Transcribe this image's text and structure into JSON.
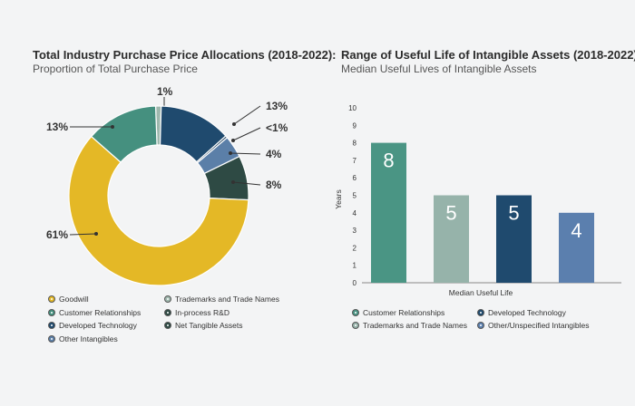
{
  "chart_data": [
    {
      "type": "pie",
      "title": "Total Industry Purchase Price Allocations (2018-2022):",
      "subtitle": "Proportion of Total Purchase Price",
      "slices": [
        {
          "name": "Trademarks and Trade Names",
          "value": 1,
          "label": "1%",
          "color": "#9fb8ae"
        },
        {
          "name": "Developed Technology",
          "value": 13,
          "label": "13%",
          "color": "#1f4a6e"
        },
        {
          "name": "Other Intangibles",
          "value": 0.4,
          "label": "<1%",
          "color": "#2b4b66"
        },
        {
          "name": "In-process R&D",
          "value": 4,
          "label": "4%",
          "color": "#5b7fa8"
        },
        {
          "name": "Net Tangible Assets",
          "value": 8,
          "label": "8%",
          "color": "#2e4a44"
        },
        {
          "name": "Goodwill",
          "value": 61,
          "label": "61%",
          "color": "#e4b826"
        },
        {
          "name": "Customer Relationships",
          "value": 13,
          "label": "13%",
          "color": "#45907f"
        }
      ],
      "legend": [
        {
          "label": "Goodwill",
          "color": "#e4b826"
        },
        {
          "label": "Trademarks and Trade Names",
          "color": "#9fb8ae"
        },
        {
          "label": "Customer Relationships",
          "color": "#45907f"
        },
        {
          "label": "In-process R&D",
          "color": "#2e4a44"
        },
        {
          "label": "Developed Technology",
          "color": "#1f4a6e"
        },
        {
          "label": "Net Tangible Assets",
          "color": "#2e4a44"
        },
        {
          "label": "Other Intangibles",
          "color": "#5b7fa8"
        }
      ]
    },
    {
      "type": "bar",
      "title": "Range of Useful Life of Intangible Assets (2018-2022):",
      "subtitle": "Median Useful Lives of Intangible Assets",
      "categories": [
        "Customer Relationships",
        "Trademarks and Trade Names",
        "Developed Technology",
        "Other/Unspecified Intangibles"
      ],
      "values": [
        8,
        5,
        5,
        4
      ],
      "colors": [
        "#4a9584",
        "#96b3aa",
        "#1f4a6e",
        "#5b7fae"
      ],
      "xlabel": "Median Useful Life",
      "ylabel": "Years",
      "ylim": [
        0,
        10
      ],
      "yticks": [
        "0",
        "1",
        "2",
        "3",
        "4",
        "5",
        "6",
        "7",
        "8",
        "9",
        "10"
      ],
      "legend": [
        {
          "label": "Customer Relationships",
          "color": "#4a9584"
        },
        {
          "label": "Developed Technology",
          "color": "#1f4a6e"
        },
        {
          "label": "Trademarks and Trade Names",
          "color": "#96b3aa"
        },
        {
          "label": "Other/Unspecified Intangibles",
          "color": "#5b7fae"
        }
      ]
    }
  ]
}
